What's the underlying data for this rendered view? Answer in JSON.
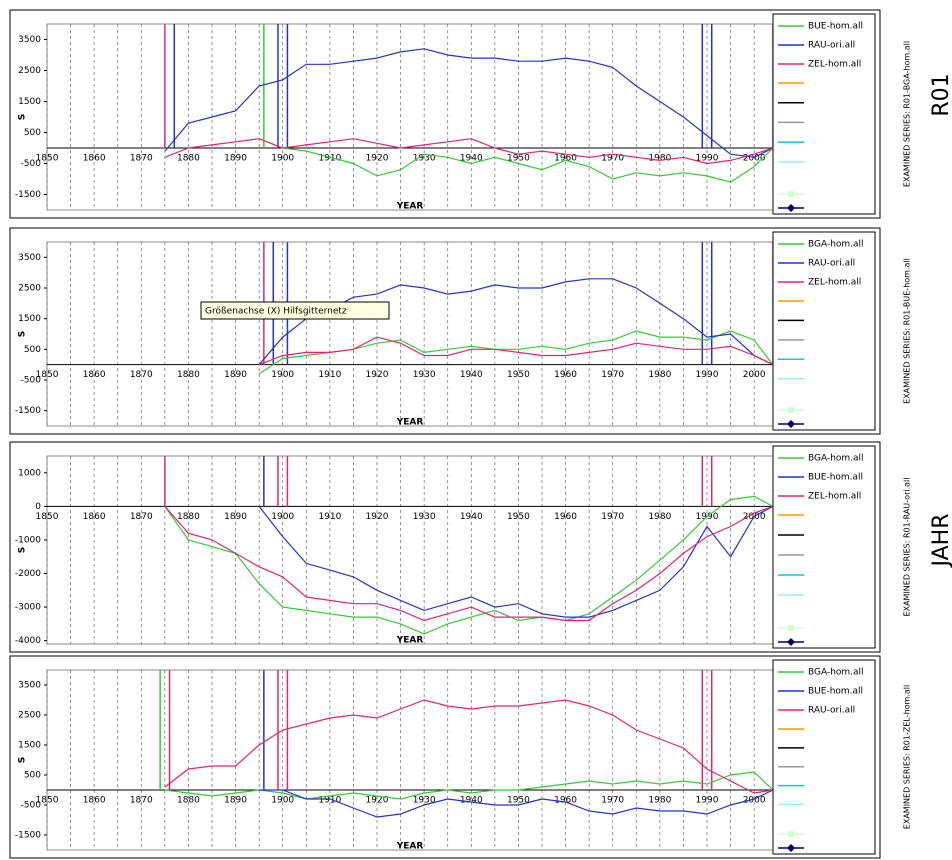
{
  "page_labels": {
    "station": "R01",
    "element": "JAHR"
  },
  "tooltip": "Größenachse (X) Hilfsgitternetz",
  "chart_data": [
    {
      "type": "line",
      "side_label": "EXAMINED SERIES: R01-BGA-hom.all",
      "x_label": "YEAR",
      "y_label": "S",
      "xlim": [
        1850,
        2004
      ],
      "ylim": [
        -2000,
        4000
      ],
      "xticks": [
        1850,
        1860,
        1870,
        1880,
        1890,
        1900,
        1910,
        1920,
        1930,
        1940,
        1950,
        1960,
        1970,
        1980,
        1990,
        2000
      ],
      "x_minor_grid": [
        1855,
        1865,
        1875,
        1885,
        1895,
        1905,
        1915,
        1925,
        1935,
        1945,
        1955,
        1965,
        1975,
        1985,
        1995
      ],
      "yticks": [
        -1500,
        -500,
        500,
        1500,
        2500,
        3500
      ],
      "x": [
        1875,
        1880,
        1885,
        1890,
        1895,
        1900,
        1905,
        1910,
        1915,
        1920,
        1925,
        1930,
        1935,
        1940,
        1945,
        1950,
        1955,
        1960,
        1965,
        1970,
        1975,
        1980,
        1985,
        1990,
        1995,
        2000,
        2004
      ],
      "series": [
        {
          "name": "BUE-hom.all",
          "color": "#33cc33",
          "values": [
            null,
            null,
            null,
            null,
            300,
            0,
            -100,
            -300,
            -500,
            -900,
            -700,
            -200,
            -300,
            -500,
            -300,
            -500,
            -700,
            -400,
            -600,
            -1000,
            -800,
            -900,
            -800,
            -900,
            -1100,
            -600,
            0
          ]
        },
        {
          "name": "RAU-ori.all",
          "color": "#2233cc",
          "values": [
            -100,
            800,
            1000,
            1200,
            2000,
            2200,
            2700,
            2700,
            2800,
            2900,
            3100,
            3200,
            3000,
            2900,
            2900,
            2800,
            2800,
            2900,
            2800,
            2600,
            2000,
            1500,
            1000,
            400,
            -200,
            -300,
            0
          ]
        },
        {
          "name": "ZEL-hom.all",
          "color": "#e6246e",
          "values": [
            -300,
            0,
            100,
            200,
            300,
            0,
            100,
            200,
            300,
            150,
            0,
            100,
            200,
            300,
            0,
            -200,
            -100,
            -200,
            -300,
            -200,
            -300,
            -400,
            -300,
            -500,
            -400,
            -200,
            0
          ]
        }
      ],
      "breaks": [
        {
          "x": 1875,
          "color": "#e6246e"
        },
        {
          "x": 1877,
          "color": "#2233cc"
        },
        {
          "x": 1896,
          "color": "#33cc33"
        },
        {
          "x": 1899,
          "color": "#2233cc"
        },
        {
          "x": 1901,
          "color": "#2233cc"
        },
        {
          "x": 1989,
          "color": "#2233cc"
        },
        {
          "x": 1991,
          "color": "#2233cc"
        },
        {
          "x": 2004,
          "color": "#e6246e"
        }
      ]
    },
    {
      "type": "line",
      "side_label": "EXAMINED SERIES: R01-BUE-hom.all",
      "x_label": "YEAR",
      "y_label": "S",
      "xlim": [
        1850,
        2004
      ],
      "ylim": [
        -2000,
        4000
      ],
      "xticks": [
        1850,
        1860,
        1870,
        1880,
        1890,
        1900,
        1910,
        1920,
        1930,
        1940,
        1950,
        1960,
        1970,
        1980,
        1990,
        2000
      ],
      "x_minor_grid": [
        1855,
        1865,
        1875,
        1885,
        1895,
        1905,
        1915,
        1925,
        1935,
        1945,
        1955,
        1965,
        1975,
        1985,
        1995
      ],
      "yticks": [
        -1500,
        -500,
        500,
        1500,
        2500,
        3500
      ],
      "x": [
        1875,
        1880,
        1885,
        1890,
        1895,
        1900,
        1905,
        1910,
        1915,
        1920,
        1925,
        1930,
        1935,
        1940,
        1945,
        1950,
        1955,
        1960,
        1965,
        1970,
        1975,
        1980,
        1985,
        1990,
        1995,
        2000,
        2004
      ],
      "series": [
        {
          "name": "BGA-hom.all",
          "color": "#33cc33",
          "values": [
            null,
            null,
            null,
            null,
            -300,
            200,
            300,
            400,
            500,
            700,
            800,
            400,
            500,
            600,
            500,
            500,
            600,
            500,
            700,
            800,
            1100,
            900,
            900,
            800,
            1100,
            800,
            0
          ]
        },
        {
          "name": "RAU-ori.all",
          "color": "#2233cc",
          "values": [
            null,
            null,
            null,
            null,
            0,
            900,
            1500,
            1800,
            2200,
            2300,
            2600,
            2500,
            2300,
            2400,
            2600,
            2500,
            2500,
            2700,
            2800,
            2800,
            2500,
            2000,
            1500,
            900,
            1000,
            300,
            0
          ]
        },
        {
          "name": "ZEL-hom.all",
          "color": "#e6246e",
          "values": [
            null,
            null,
            null,
            null,
            0,
            300,
            400,
            400,
            500,
            900,
            700,
            300,
            300,
            500,
            500,
            400,
            300,
            300,
            400,
            500,
            700,
            600,
            500,
            500,
            600,
            300,
            0
          ]
        }
      ],
      "breaks": [
        {
          "x": 1896,
          "color": "#e6246e"
        },
        {
          "x": 1898,
          "color": "#2233cc"
        },
        {
          "x": 1901,
          "color": "#2233cc"
        },
        {
          "x": 1989,
          "color": "#2233cc"
        },
        {
          "x": 1991,
          "color": "#2233cc"
        },
        {
          "x": 2004,
          "color": "#e6246e"
        }
      ]
    },
    {
      "type": "line",
      "side_label": "EXAMINED SERIES: R01-RAU-ori.all",
      "x_label": "YEAR",
      "y_label": "S",
      "xlim": [
        1850,
        2004
      ],
      "ylim": [
        -4100,
        1500
      ],
      "xticks": [
        1850,
        1860,
        1870,
        1880,
        1890,
        1900,
        1910,
        1920,
        1930,
        1940,
        1950,
        1960,
        1970,
        1980,
        1990,
        2000
      ],
      "x_minor_grid": [
        1855,
        1865,
        1875,
        1885,
        1895,
        1905,
        1915,
        1925,
        1935,
        1945,
        1955,
        1965,
        1975,
        1985,
        1995
      ],
      "yticks": [
        -4000,
        -3000,
        -2000,
        -1000,
        0,
        1000
      ],
      "x": [
        1875,
        1880,
        1885,
        1890,
        1895,
        1900,
        1905,
        1910,
        1915,
        1920,
        1925,
        1930,
        1935,
        1940,
        1945,
        1950,
        1955,
        1960,
        1965,
        1970,
        1975,
        1980,
        1985,
        1990,
        1995,
        2000,
        2004
      ],
      "series": [
        {
          "name": "BGA-hom.all",
          "color": "#33cc33",
          "values": [
            0,
            -1000,
            -1200,
            -1400,
            -2300,
            -3000,
            -3100,
            -3200,
            -3300,
            -3300,
            -3500,
            -3800,
            -3500,
            -3300,
            -3100,
            -3400,
            -3300,
            -3400,
            -3200,
            -2700,
            -2200,
            -1600,
            -1000,
            -300,
            200,
            300,
            0
          ]
        },
        {
          "name": "BUE-hom.all",
          "color": "#2233cc",
          "values": [
            null,
            null,
            null,
            null,
            0,
            -900,
            -1700,
            -1900,
            -2100,
            -2500,
            -2800,
            -3100,
            -2900,
            -2700,
            -3000,
            -2900,
            -3200,
            -3300,
            -3300,
            -3100,
            -2800,
            -2500,
            -1800,
            -600,
            -1500,
            -300,
            0
          ]
        },
        {
          "name": "ZEL-hom.all",
          "color": "#e6246e",
          "values": [
            0,
            -800,
            -1000,
            -1400,
            -1800,
            -2100,
            -2700,
            -2800,
            -2900,
            -2900,
            -3100,
            -3400,
            -3200,
            -3000,
            -3300,
            -3300,
            -3300,
            -3400,
            -3400,
            -2900,
            -2500,
            -2000,
            -1400,
            -900,
            -600,
            -200,
            0
          ]
        }
      ],
      "breaks": [
        {
          "x": 1875,
          "color": "#e6246e"
        },
        {
          "x": 1896,
          "color": "#2233cc"
        },
        {
          "x": 1899,
          "color": "#e6246e"
        },
        {
          "x": 1901,
          "color": "#e6246e"
        },
        {
          "x": 1989,
          "color": "#e6246e"
        },
        {
          "x": 1991,
          "color": "#e6246e"
        }
      ]
    },
    {
      "type": "line",
      "side_label": "EXAMINED SERIES: R01-ZEL-hom.all",
      "x_label": "YEAR",
      "y_label": "S",
      "xlim": [
        1850,
        2004
      ],
      "ylim": [
        -2000,
        4000
      ],
      "xticks": [
        1850,
        1860,
        1870,
        1880,
        1890,
        1900,
        1910,
        1920,
        1930,
        1940,
        1950,
        1960,
        1970,
        1980,
        1990,
        2000
      ],
      "x_minor_grid": [
        1855,
        1865,
        1875,
        1885,
        1895,
        1905,
        1915,
        1925,
        1935,
        1945,
        1955,
        1965,
        1975,
        1985,
        1995
      ],
      "yticks": [
        -1500,
        -500,
        500,
        1500,
        2500,
        3500
      ],
      "x": [
        1875,
        1880,
        1885,
        1890,
        1895,
        1900,
        1905,
        1910,
        1915,
        1920,
        1925,
        1930,
        1935,
        1940,
        1945,
        1950,
        1955,
        1960,
        1965,
        1970,
        1975,
        1980,
        1985,
        1990,
        1995,
        2000,
        2004
      ],
      "series": [
        {
          "name": "BGA-hom.all",
          "color": "#33cc33",
          "values": [
            0,
            -100,
            -200,
            -100,
            0,
            -100,
            -300,
            -200,
            -100,
            -200,
            -300,
            -100,
            0,
            -100,
            0,
            0,
            100,
            200,
            300,
            200,
            300,
            200,
            300,
            200,
            500,
            600,
            0
          ]
        },
        {
          "name": "BUE-hom.all",
          "color": "#2233cc",
          "values": [
            null,
            null,
            null,
            null,
            0,
            0,
            -300,
            -300,
            -600,
            -900,
            -800,
            -500,
            -300,
            -400,
            -500,
            -500,
            -300,
            -400,
            -700,
            -800,
            -600,
            -700,
            -700,
            -800,
            -500,
            -300,
            0
          ]
        },
        {
          "name": "RAU-ori.all",
          "color": "#e6246e",
          "values": [
            100,
            700,
            800,
            800,
            1500,
            2000,
            2200,
            2400,
            2500,
            2400,
            2700,
            3000,
            2800,
            2700,
            2800,
            2800,
            2900,
            3000,
            2800,
            2500,
            2000,
            1700,
            1400,
            700,
            300,
            -100,
            0
          ]
        }
      ],
      "breaks": [
        {
          "x": 1874,
          "color": "#33cc33"
        },
        {
          "x": 1876,
          "color": "#e6246e"
        },
        {
          "x": 1896,
          "color": "#2233cc"
        },
        {
          "x": 1899,
          "color": "#e6246e"
        },
        {
          "x": 1901,
          "color": "#e6246e"
        },
        {
          "x": 1989,
          "color": "#e6246e"
        },
        {
          "x": 1991,
          "color": "#e6246e"
        }
      ]
    }
  ]
}
